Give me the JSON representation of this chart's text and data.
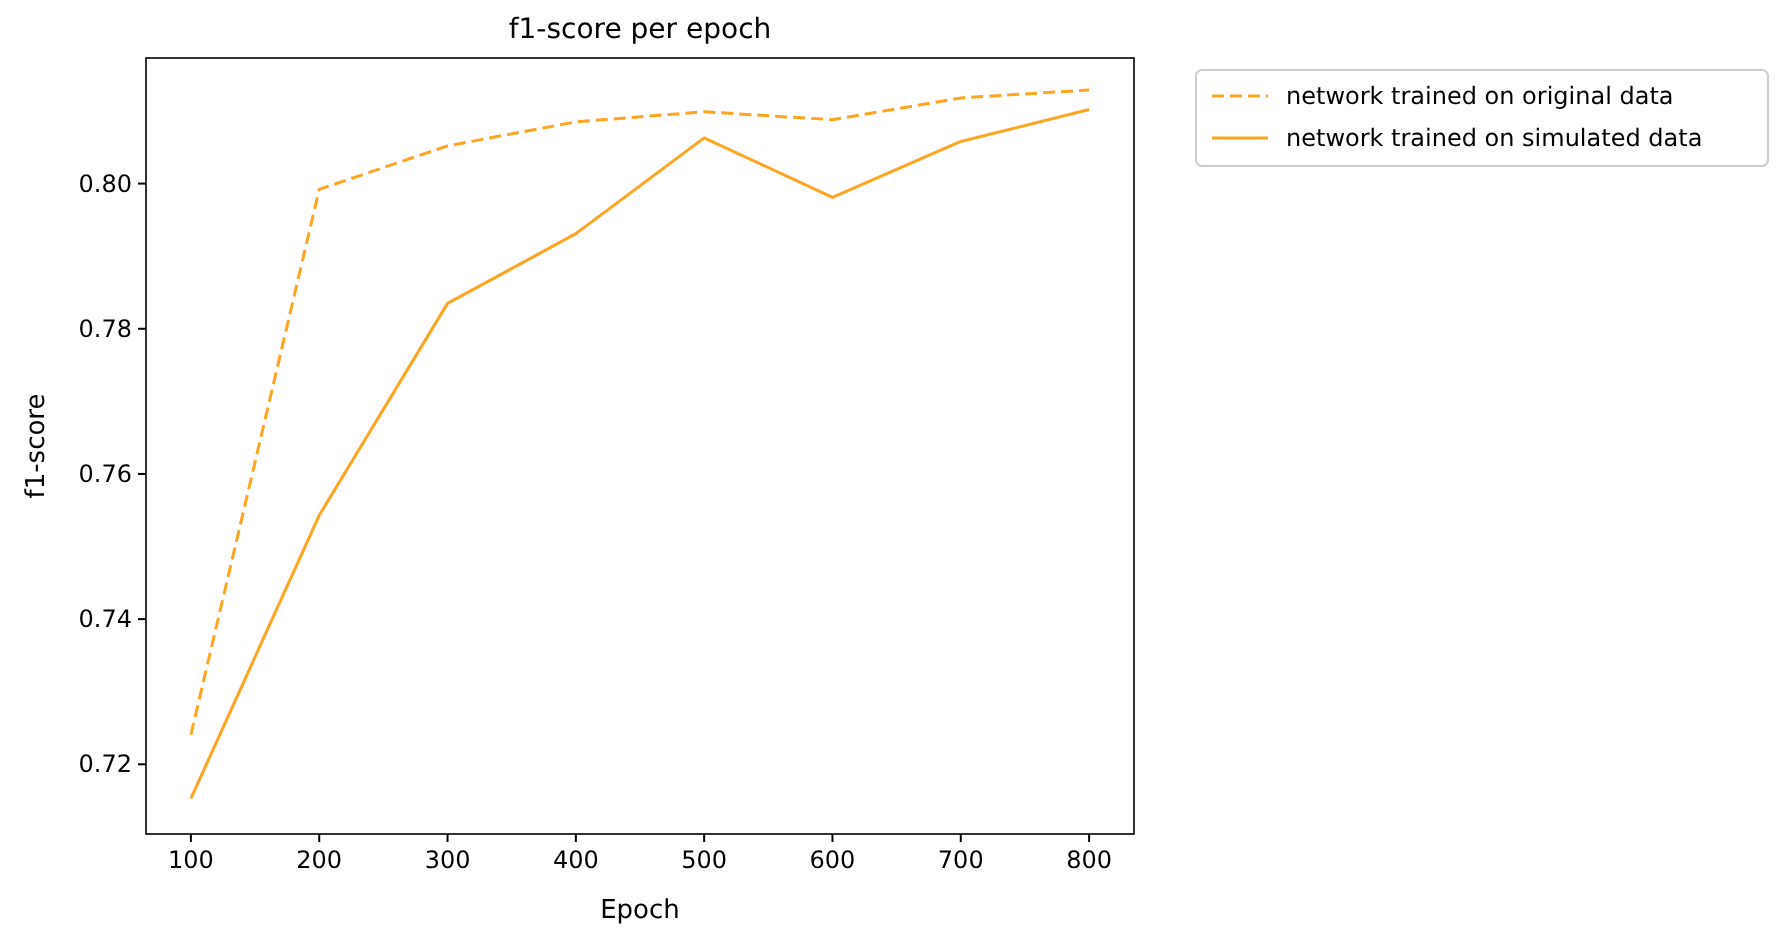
{
  "chart_data": {
    "type": "line",
    "title": "f1-score per epoch",
    "xlabel": "Epoch",
    "ylabel": "f1-score",
    "x": [
      100,
      200,
      300,
      400,
      500,
      600,
      700,
      800
    ],
    "series": [
      {
        "name": "network trained on original data",
        "color": "#ffa51f",
        "line_style": "dashed",
        "values": [
          0.7241,
          0.7992,
          0.8052,
          0.8085,
          0.8099,
          0.8088,
          0.8118,
          0.8129
        ]
      },
      {
        "name": "network trained on simulated data",
        "color": "#ffa51f",
        "line_style": "solid",
        "values": [
          0.7153,
          0.7543,
          0.7835,
          0.7931,
          0.8063,
          0.7981,
          0.8058,
          0.8102
        ]
      }
    ],
    "xlim": [
      65,
      835
    ],
    "xticks": [
      100,
      200,
      300,
      400,
      500,
      600,
      700,
      800
    ],
    "ylim": [
      0.7104,
      0.8173
    ],
    "yticks": [
      {
        "value": 0.72,
        "label": "0.72"
      },
      {
        "value": 0.74,
        "label": "0.74"
      },
      {
        "value": 0.76,
        "label": "0.76"
      },
      {
        "value": 0.78,
        "label": "0.78"
      },
      {
        "value": 0.8,
        "label": "0.80"
      }
    ],
    "legend": "top right",
    "grid": false,
    "marker": "none"
  }
}
